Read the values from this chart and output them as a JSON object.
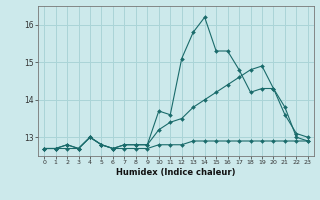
{
  "xlabel": "Humidex (Indice chaleur)",
  "bg_color": "#cce9eb",
  "grid_color": "#aad4d7",
  "line_color": "#1a6b6b",
  "x": [
    0,
    1,
    2,
    3,
    4,
    5,
    6,
    7,
    8,
    9,
    10,
    11,
    12,
    13,
    14,
    15,
    16,
    17,
    18,
    19,
    20,
    21,
    22,
    23
  ],
  "series1": [
    12.7,
    12.7,
    12.8,
    12.7,
    13.0,
    12.8,
    12.7,
    12.8,
    12.8,
    12.8,
    13.7,
    13.6,
    15.1,
    15.8,
    16.2,
    15.3,
    15.3,
    14.8,
    14.2,
    14.3,
    14.3,
    13.8,
    13.0,
    12.9
  ],
  "series2": [
    12.7,
    12.7,
    12.8,
    12.7,
    13.0,
    12.8,
    12.7,
    12.8,
    12.8,
    12.8,
    13.2,
    13.4,
    13.5,
    13.8,
    14.0,
    14.2,
    14.4,
    14.6,
    14.8,
    14.9,
    14.3,
    13.6,
    13.1,
    13.0
  ],
  "series3": [
    12.7,
    12.7,
    12.7,
    12.7,
    13.0,
    12.8,
    12.7,
    12.7,
    12.7,
    12.7,
    12.8,
    12.8,
    12.8,
    12.9,
    12.9,
    12.9,
    12.9,
    12.9,
    12.9,
    12.9,
    12.9,
    12.9,
    12.9,
    12.9
  ],
  "ylim": [
    12.5,
    16.5
  ],
  "yticks": [
    13,
    14,
    15,
    16
  ],
  "xticks": [
    0,
    1,
    2,
    3,
    4,
    5,
    6,
    7,
    8,
    9,
    10,
    11,
    12,
    13,
    14,
    15,
    16,
    17,
    18,
    19,
    20,
    21,
    22,
    23
  ]
}
